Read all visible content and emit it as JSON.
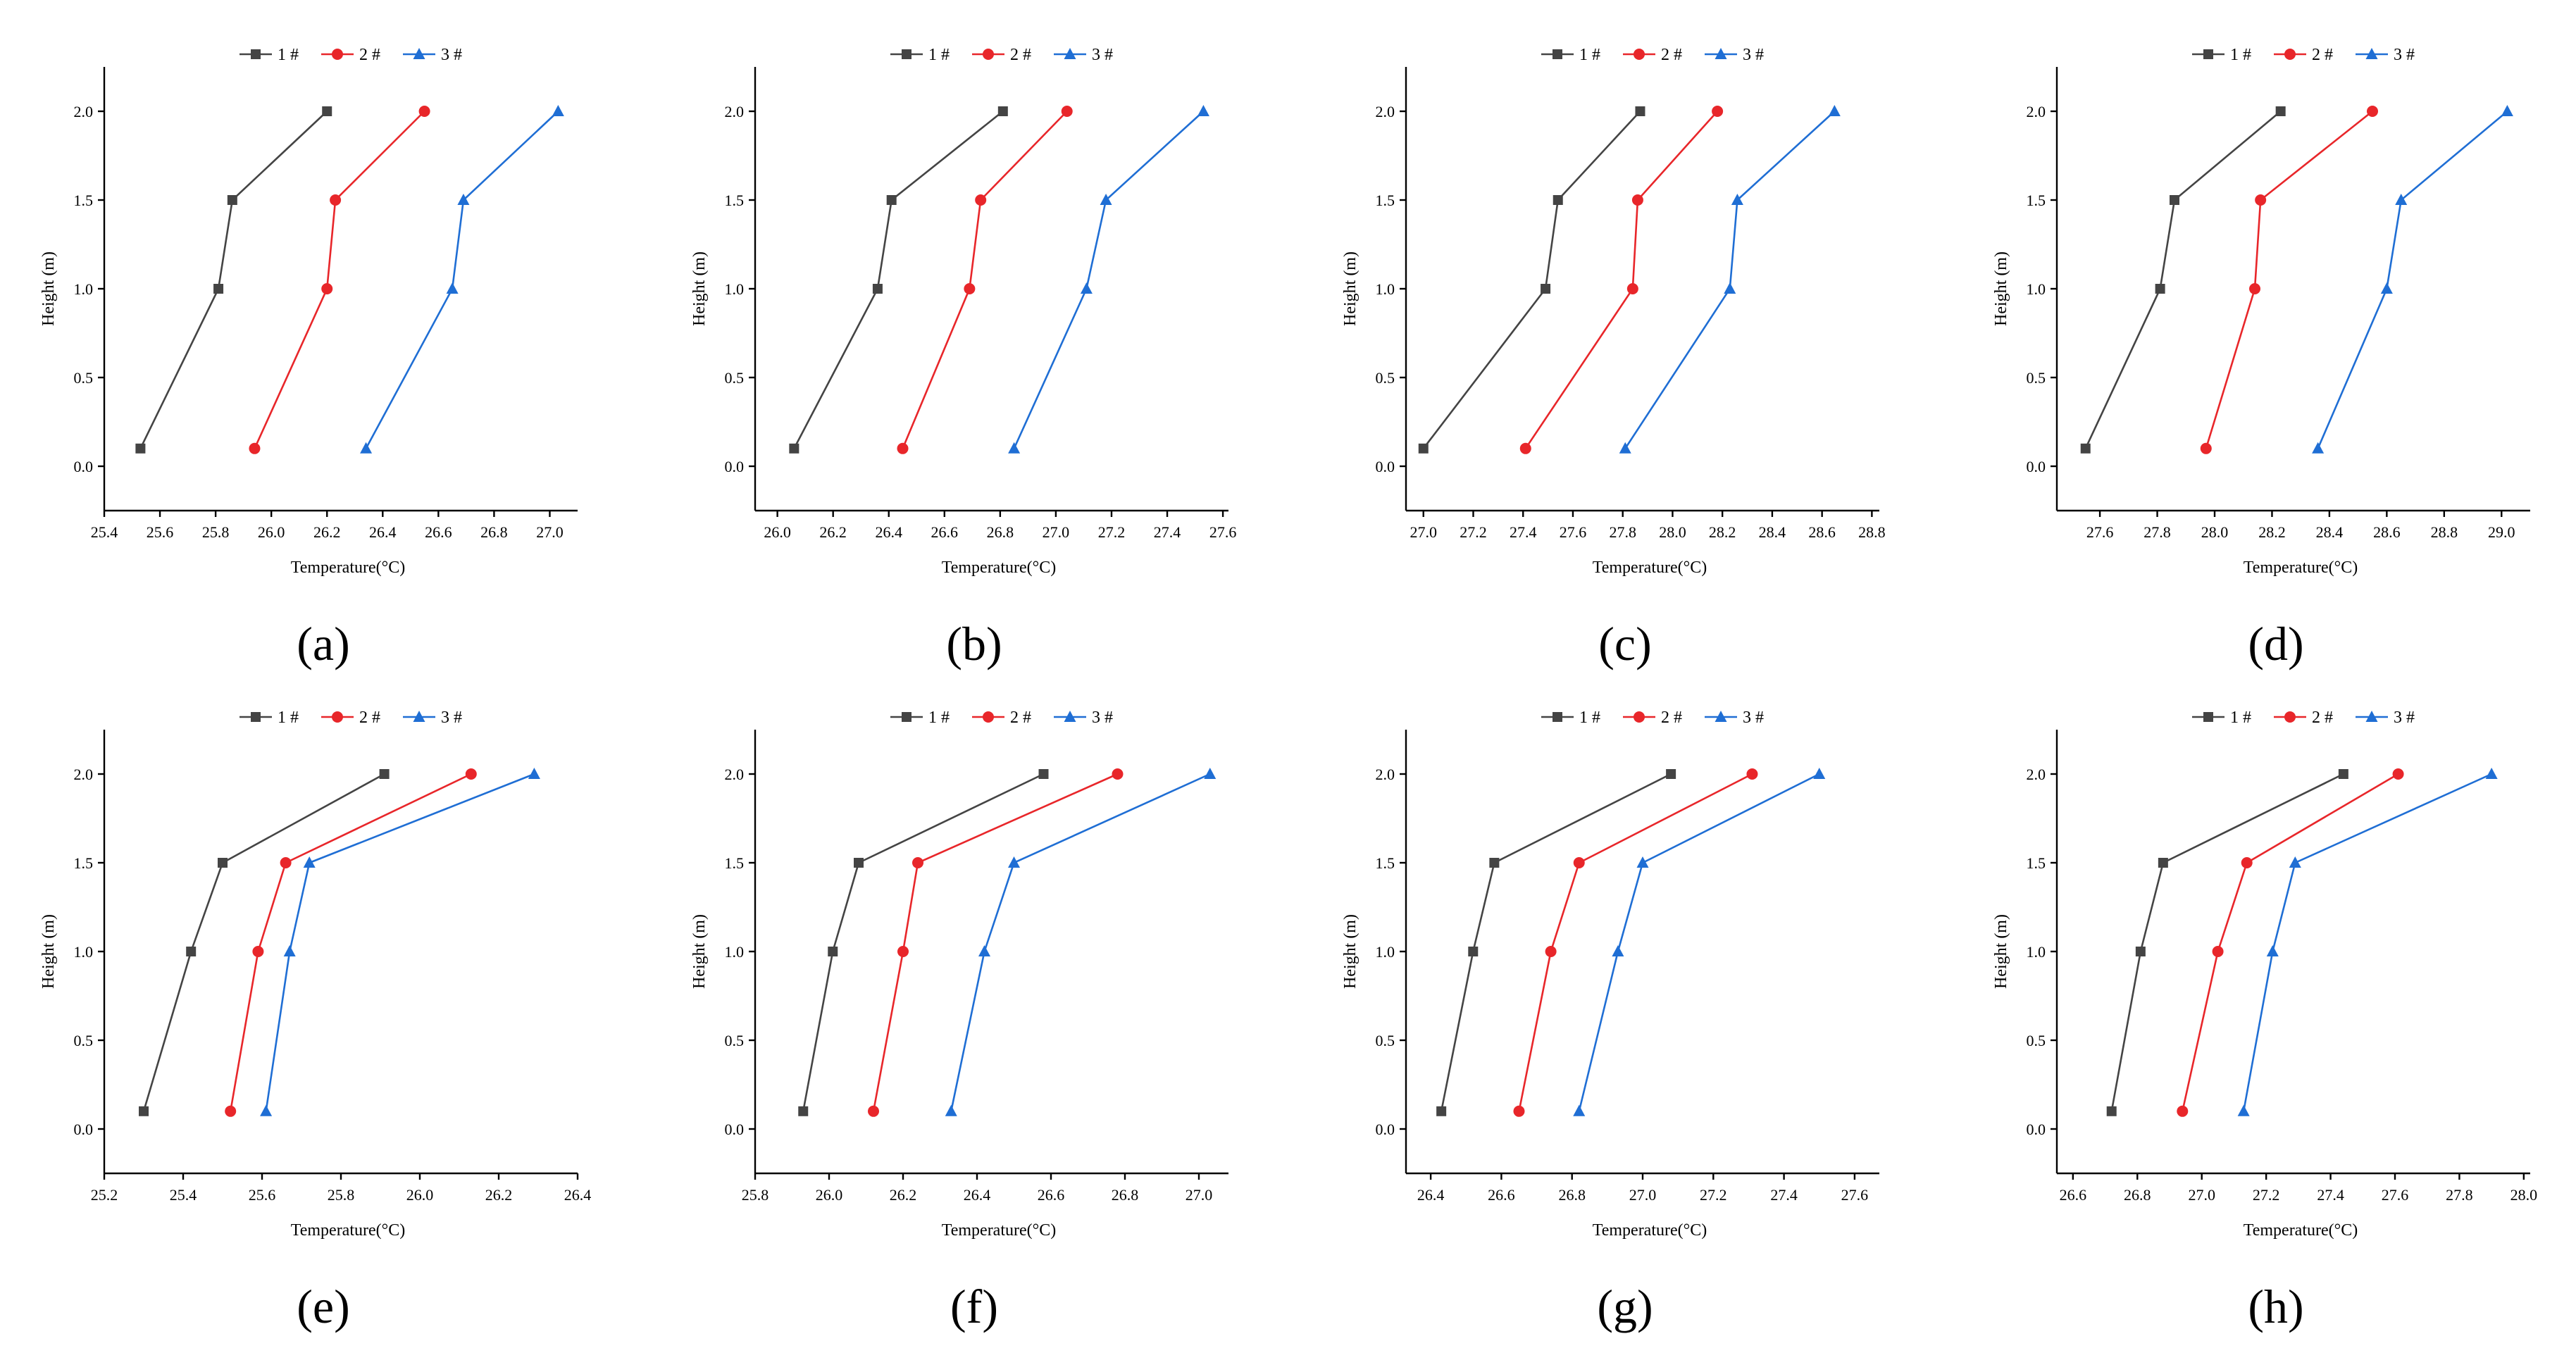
{
  "chart_data": [
    {
      "panel_label": "(a)",
      "type": "line",
      "title": "",
      "xlabel": "Temperature(°C)",
      "ylabel": "Height (m)",
      "xlim": [
        25.4,
        27.1
      ],
      "xticks": [
        25.4,
        25.6,
        25.8,
        26.0,
        26.2,
        26.4,
        26.6,
        26.8,
        27.0
      ],
      "ylim": [
        -0.25,
        2.25
      ],
      "yticks": [
        0.0,
        0.5,
        1.0,
        1.5,
        2.0
      ],
      "y": [
        0.1,
        1.0,
        1.5,
        2.0
      ],
      "series": [
        {
          "name": "1 #",
          "values": [
            25.53,
            25.81,
            25.86,
            26.2
          ]
        },
        {
          "name": "2 #",
          "values": [
            25.94,
            26.2,
            26.23,
            26.55
          ]
        },
        {
          "name": "3 #",
          "values": [
            26.34,
            26.65,
            26.69,
            27.03
          ]
        }
      ]
    },
    {
      "panel_label": "(b)",
      "type": "line",
      "title": "",
      "xlabel": "Temperature(°C)",
      "ylabel": "Height (m)",
      "xlim": [
        25.92,
        27.62
      ],
      "xticks": [
        26.0,
        26.2,
        26.4,
        26.6,
        26.8,
        27.0,
        27.2,
        27.4,
        27.6
      ],
      "ylim": [
        -0.25,
        2.25
      ],
      "yticks": [
        0.0,
        0.5,
        1.0,
        1.5,
        2.0
      ],
      "y": [
        0.1,
        1.0,
        1.5,
        2.0
      ],
      "series": [
        {
          "name": "1 #",
          "values": [
            26.06,
            26.36,
            26.41,
            26.81
          ]
        },
        {
          "name": "2 #",
          "values": [
            26.45,
            26.69,
            26.73,
            27.04
          ]
        },
        {
          "name": "3 #",
          "values": [
            26.85,
            27.11,
            27.18,
            27.53
          ]
        }
      ]
    },
    {
      "panel_label": "(c)",
      "type": "line",
      "title": "",
      "xlabel": "Temperature(°C)",
      "ylabel": "Height (m)",
      "xlim": [
        26.93,
        28.83
      ],
      "xticks": [
        27.0,
        27.2,
        27.4,
        27.6,
        27.8,
        28.0,
        28.2,
        28.4,
        28.6,
        28.8
      ],
      "ylim": [
        -0.25,
        2.25
      ],
      "yticks": [
        0.0,
        0.5,
        1.0,
        1.5,
        2.0
      ],
      "y": [
        0.1,
        1.0,
        1.5,
        2.0
      ],
      "series": [
        {
          "name": "1 #",
          "values": [
            27.0,
            27.49,
            27.54,
            27.87
          ]
        },
        {
          "name": "2 #",
          "values": [
            27.41,
            27.84,
            27.86,
            28.18
          ]
        },
        {
          "name": "3 #",
          "values": [
            27.81,
            28.23,
            28.26,
            28.65
          ]
        }
      ]
    },
    {
      "panel_label": "(d)",
      "type": "line",
      "title": "",
      "xlabel": "Temperature(°C)",
      "ylabel": "Height (m)",
      "xlim": [
        27.45,
        29.1
      ],
      "xticks": [
        27.6,
        27.8,
        28.0,
        28.2,
        28.4,
        28.6,
        28.8,
        29.0
      ],
      "ylim": [
        -0.25,
        2.25
      ],
      "yticks": [
        0.0,
        0.5,
        1.0,
        1.5,
        2.0
      ],
      "y": [
        0.1,
        1.0,
        1.5,
        2.0
      ],
      "series": [
        {
          "name": "1 #",
          "values": [
            27.55,
            27.81,
            27.86,
            28.23
          ]
        },
        {
          "name": "2 #",
          "values": [
            27.97,
            28.14,
            28.16,
            28.55
          ]
        },
        {
          "name": "3 #",
          "values": [
            28.36,
            28.6,
            28.65,
            29.02
          ]
        }
      ]
    },
    {
      "panel_label": "(e)",
      "type": "line",
      "title": "",
      "xlabel": "Temperature(°C)",
      "ylabel": "Height (m)",
      "xlim": [
        25.2,
        26.4
      ],
      "xticks": [
        25.2,
        25.4,
        25.6,
        25.8,
        26.0,
        26.2,
        26.4
      ],
      "ylim": [
        -0.25,
        2.25
      ],
      "yticks": [
        0.0,
        0.5,
        1.0,
        1.5,
        2.0
      ],
      "y": [
        0.1,
        1.0,
        1.5,
        2.0
      ],
      "series": [
        {
          "name": "1 #",
          "values": [
            25.3,
            25.42,
            25.5,
            25.91
          ]
        },
        {
          "name": "2 #",
          "values": [
            25.52,
            25.59,
            25.66,
            26.13
          ]
        },
        {
          "name": "3 #",
          "values": [
            25.61,
            25.67,
            25.72,
            26.29
          ]
        }
      ]
    },
    {
      "panel_label": "(f)",
      "type": "line",
      "title": "",
      "xlabel": "Temperature(°C)",
      "ylabel": "Height (m)",
      "xlim": [
        25.8,
        27.08
      ],
      "xticks": [
        25.8,
        26.0,
        26.2,
        26.4,
        26.6,
        26.8,
        27.0
      ],
      "ylim": [
        -0.25,
        2.25
      ],
      "yticks": [
        0.0,
        0.5,
        1.0,
        1.5,
        2.0
      ],
      "y": [
        0.1,
        1.0,
        1.5,
        2.0
      ],
      "series": [
        {
          "name": "1 #",
          "values": [
            25.93,
            26.01,
            26.08,
            26.58
          ]
        },
        {
          "name": "2 #",
          "values": [
            26.12,
            26.2,
            26.24,
            26.78
          ]
        },
        {
          "name": "3 #",
          "values": [
            26.33,
            26.42,
            26.5,
            27.03
          ]
        }
      ]
    },
    {
      "panel_label": "(g)",
      "type": "line",
      "title": "",
      "xlabel": "Temperature(°C)",
      "ylabel": "Height (m)",
      "xlim": [
        26.33,
        27.67
      ],
      "xticks": [
        26.4,
        26.6,
        26.8,
        27.0,
        27.2,
        27.4,
        27.6
      ],
      "ylim": [
        -0.25,
        2.25
      ],
      "yticks": [
        0.0,
        0.5,
        1.0,
        1.5,
        2.0
      ],
      "y": [
        0.1,
        1.0,
        1.5,
        2.0
      ],
      "series": [
        {
          "name": "1 #",
          "values": [
            26.43,
            26.52,
            26.58,
            27.08
          ]
        },
        {
          "name": "2 #",
          "values": [
            26.65,
            26.74,
            26.82,
            27.31
          ]
        },
        {
          "name": "3 #",
          "values": [
            26.82,
            26.93,
            27.0,
            27.5
          ]
        }
      ]
    },
    {
      "panel_label": "(h)",
      "type": "line",
      "title": "",
      "xlabel": "Temperature(°C)",
      "ylabel": "Height (m)",
      "xlim": [
        26.55,
        28.02
      ],
      "xticks": [
        26.6,
        26.8,
        27.0,
        27.2,
        27.4,
        27.6,
        27.8,
        28.0
      ],
      "ylim": [
        -0.25,
        2.25
      ],
      "yticks": [
        0.0,
        0.5,
        1.0,
        1.5,
        2.0
      ],
      "y": [
        0.1,
        1.0,
        1.5,
        2.0
      ],
      "series": [
        {
          "name": "1 #",
          "values": [
            26.72,
            26.81,
            26.88,
            27.44
          ]
        },
        {
          "name": "2 #",
          "values": [
            26.94,
            27.05,
            27.14,
            27.61
          ]
        },
        {
          "name": "3 #",
          "values": [
            27.13,
            27.22,
            27.29,
            27.9
          ]
        }
      ]
    }
  ],
  "style": {
    "series_colors": [
      "#444444",
      "#e8262a",
      "#1f6ed4"
    ],
    "series_markers": [
      "square",
      "circle",
      "triangle"
    ],
    "axis_color": "#000000",
    "background": "#ffffff"
  }
}
